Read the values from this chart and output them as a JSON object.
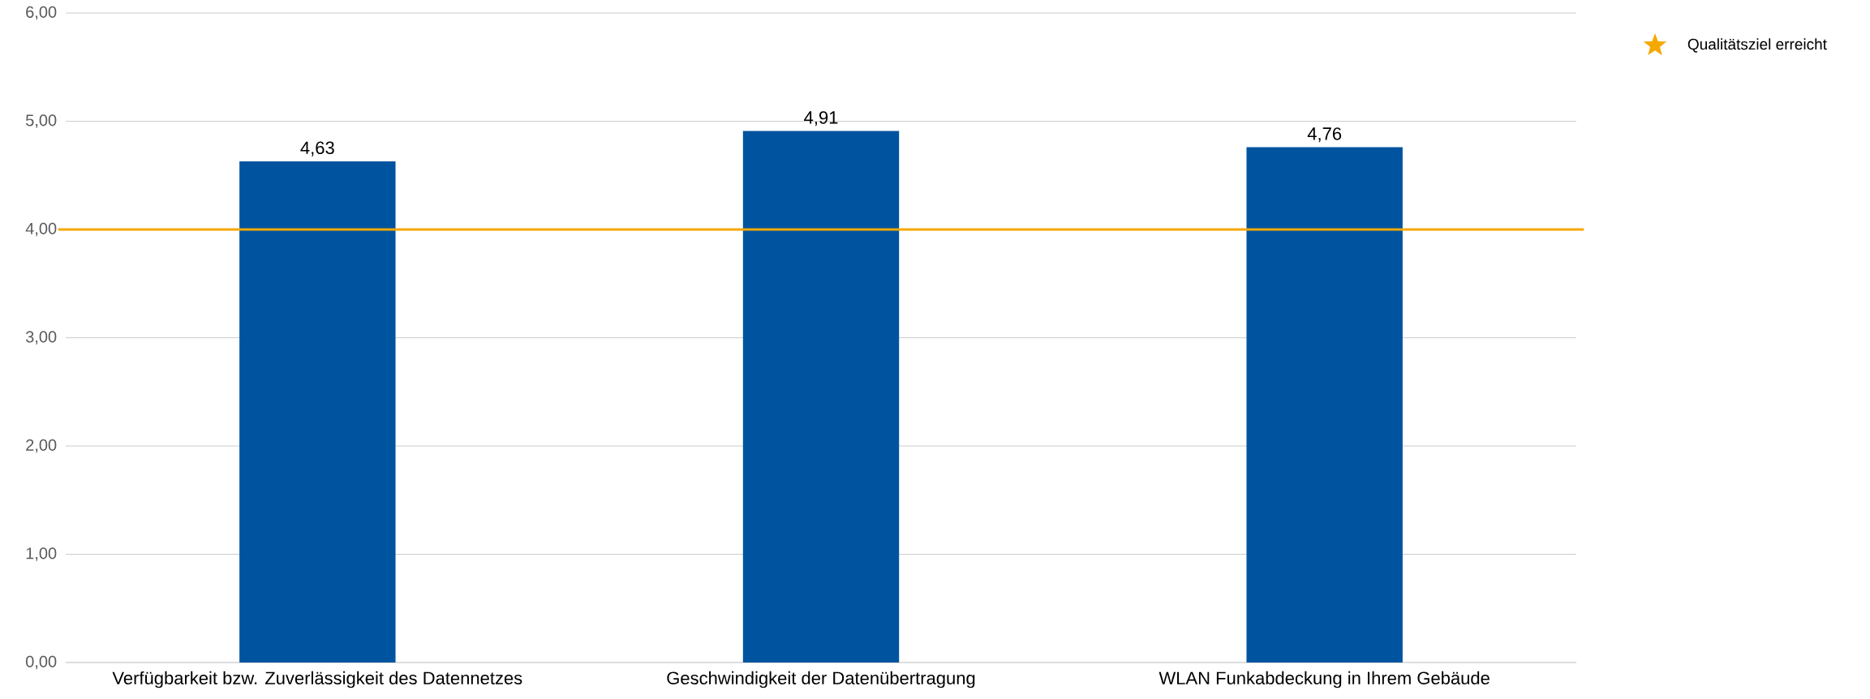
{
  "chart_data": {
    "type": "bar",
    "categories": [
      "Verfügbarkeit bzw. Zuverlässigkeit des Datennetzes",
      "Geschwindigkeit der Datenübertragung",
      "WLAN Funkabdeckung in Ihrem Gebäude"
    ],
    "values": [
      4.63,
      4.91,
      4.76
    ],
    "value_labels": [
      "4,63",
      "4,91",
      "4,76"
    ],
    "color": "#00549f",
    "ylim": [
      0,
      6
    ],
    "yticks": [
      {
        "value": 0,
        "label": "0,00"
      },
      {
        "value": 1,
        "label": "1,00"
      },
      {
        "value": 2,
        "label": "2,00"
      },
      {
        "value": 3,
        "label": "3,00"
      },
      {
        "value": 4,
        "label": "4,00"
      },
      {
        "value": 5,
        "label": "5,00"
      },
      {
        "value": 6,
        "label": "6,00"
      }
    ],
    "grid": "y",
    "legend": "top right",
    "ref_lines": [
      {
        "axis": "y",
        "value": 4,
        "label": "Qualitätsziel erreicht",
        "color": "#f5a800"
      }
    ]
  }
}
